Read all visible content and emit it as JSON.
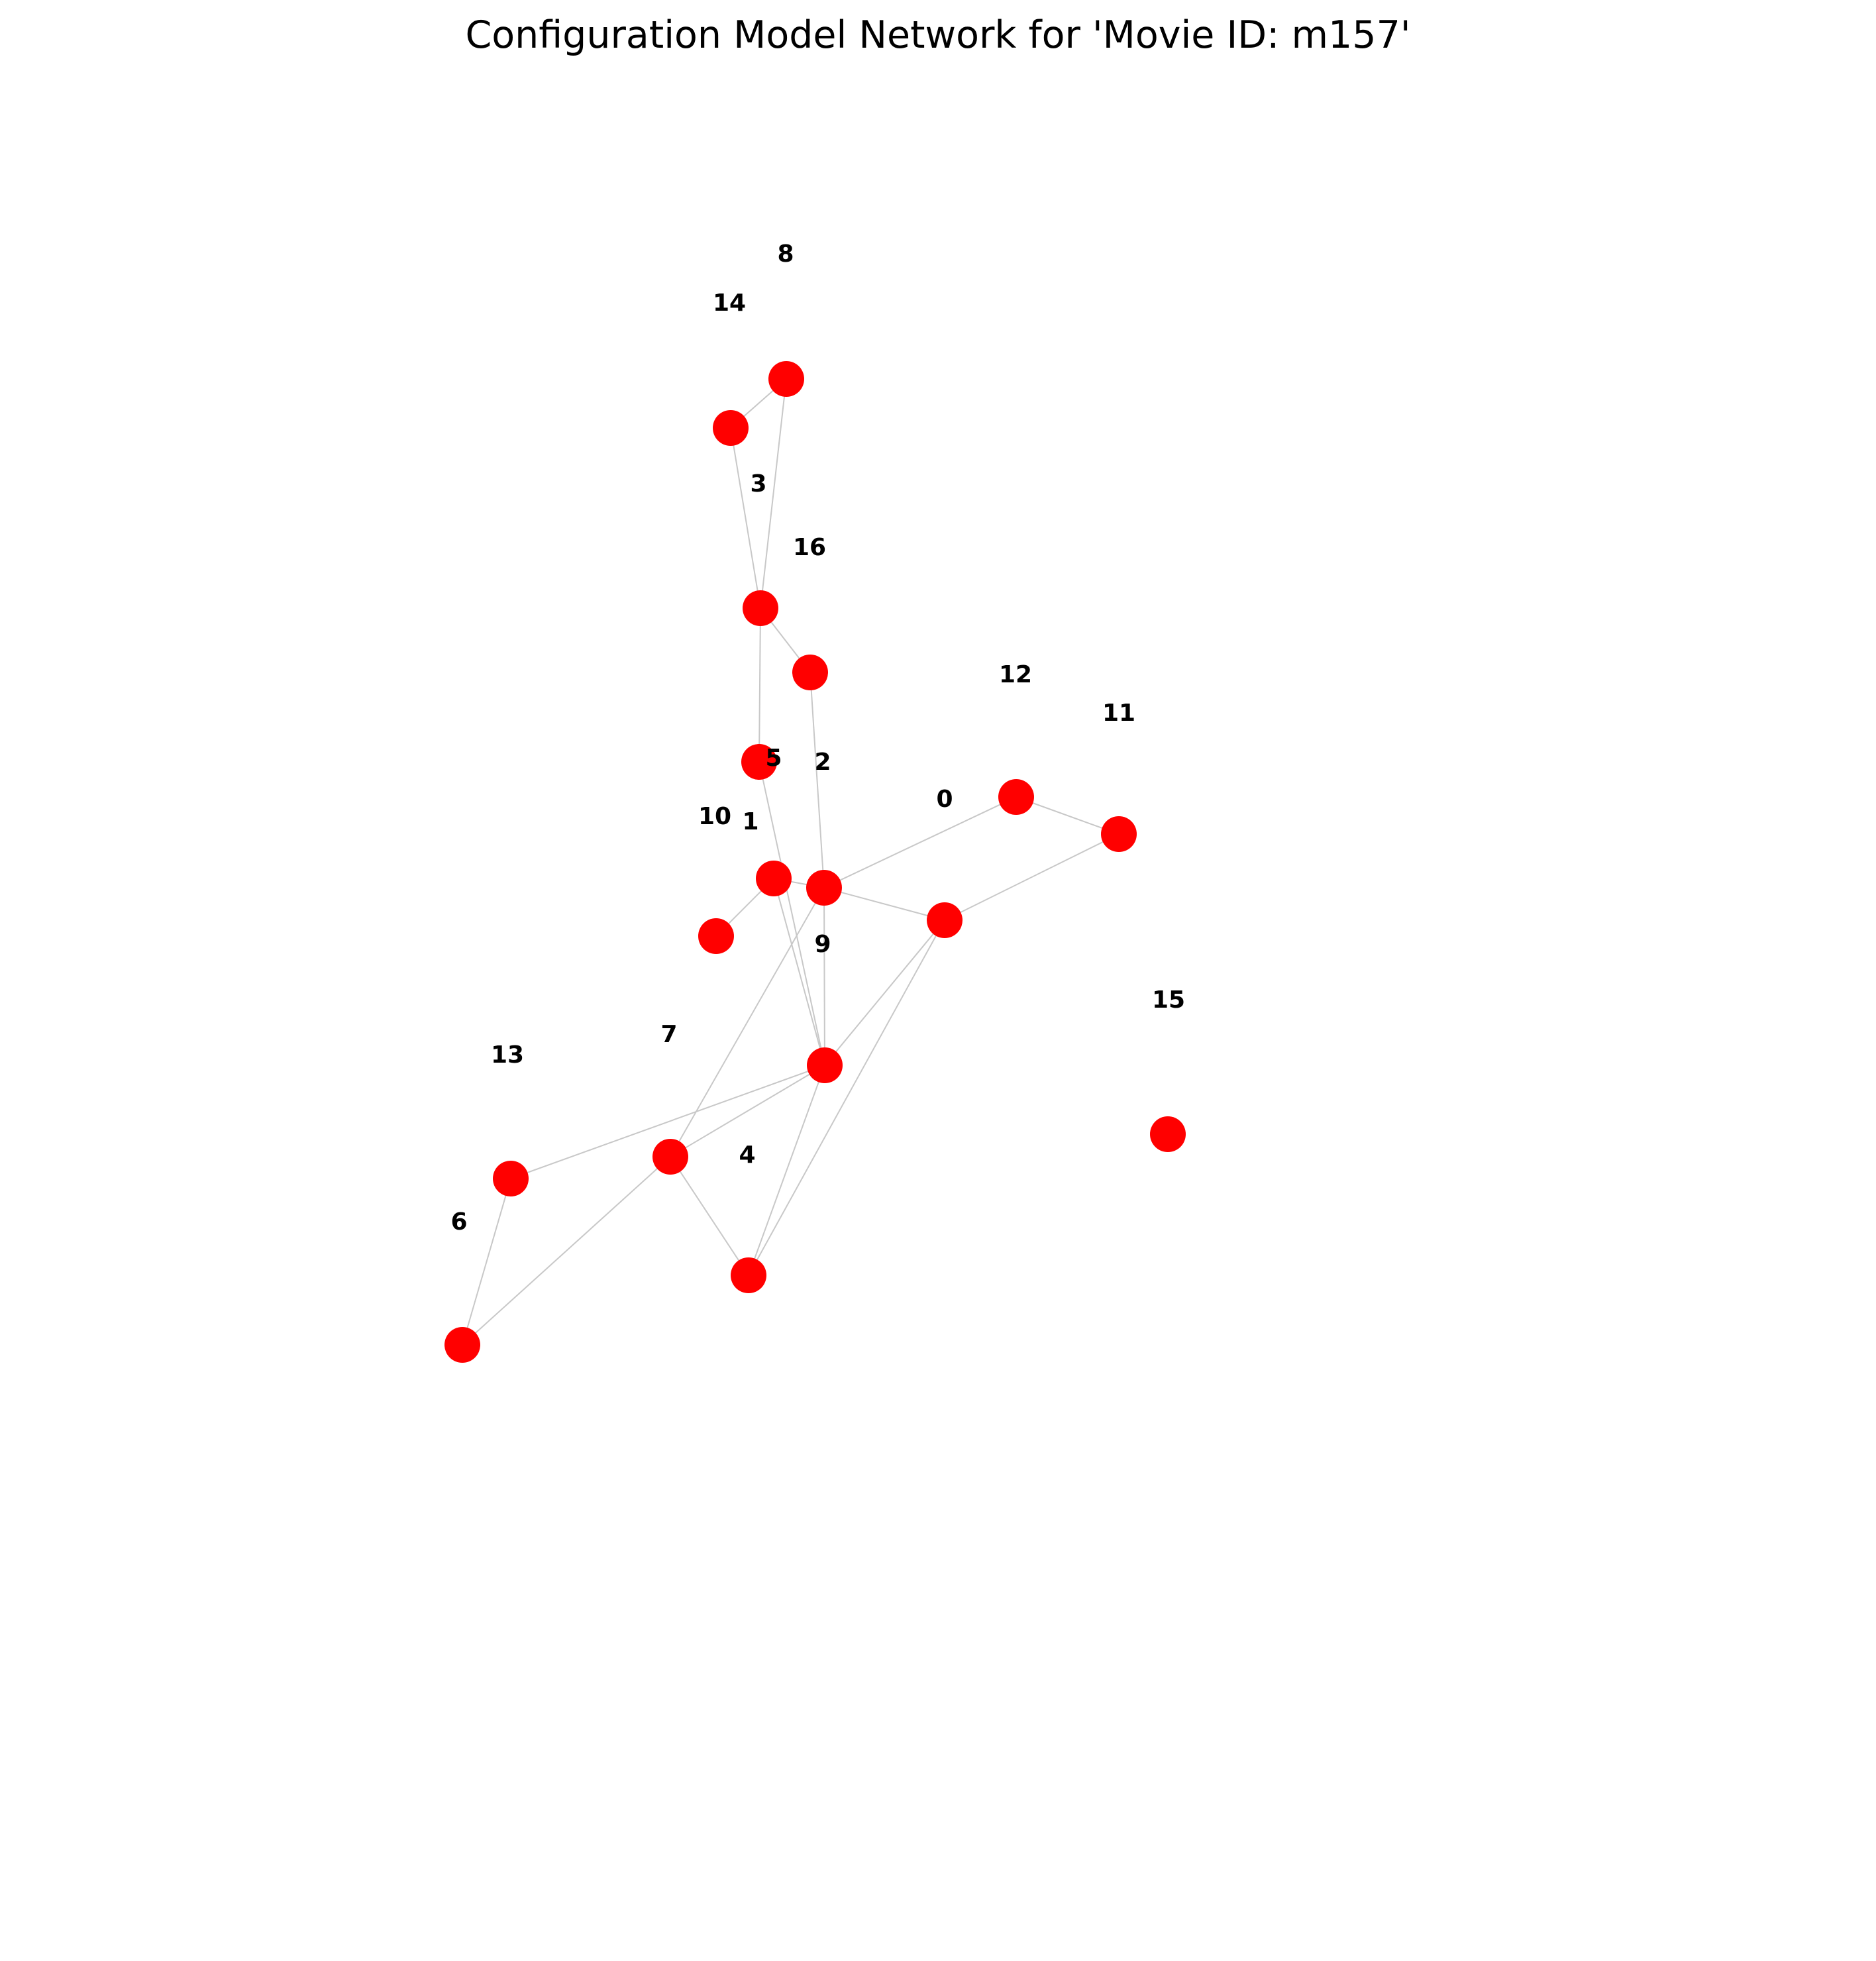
{
  "title": "Configuration Model Network for 'Movie ID: m157'",
  "node_color": "#ff0000",
  "edge_color": "#c8c8c8",
  "nodes": [
    {
      "id": "0"
    },
    {
      "id": "1"
    },
    {
      "id": "2"
    },
    {
      "id": "3"
    },
    {
      "id": "4"
    },
    {
      "id": "5"
    },
    {
      "id": "6"
    },
    {
      "id": "7"
    },
    {
      "id": "8"
    },
    {
      "id": "9"
    },
    {
      "id": "10"
    },
    {
      "id": "11"
    },
    {
      "id": "12"
    },
    {
      "id": "13"
    },
    {
      "id": "14"
    },
    {
      "id": "15"
    },
    {
      "id": "16"
    }
  ],
  "edges": [
    [
      "8",
      "14"
    ],
    [
      "8",
      "3"
    ],
    [
      "14",
      "3"
    ],
    [
      "3",
      "16"
    ],
    [
      "3",
      "5"
    ],
    [
      "16",
      "2"
    ],
    [
      "12",
      "11"
    ],
    [
      "12",
      "2"
    ],
    [
      "11",
      "0"
    ],
    [
      "2",
      "0"
    ],
    [
      "2",
      "1"
    ],
    [
      "2",
      "9"
    ],
    [
      "2",
      "7"
    ],
    [
      "0",
      "9"
    ],
    [
      "0",
      "4"
    ],
    [
      "1",
      "10"
    ],
    [
      "1",
      "9"
    ],
    [
      "5",
      "9"
    ],
    [
      "9",
      "4"
    ],
    [
      "9",
      "7"
    ],
    [
      "9",
      "13"
    ],
    [
      "13",
      "6"
    ],
    [
      "6",
      "7"
    ],
    [
      "7",
      "4"
    ]
  ]
}
